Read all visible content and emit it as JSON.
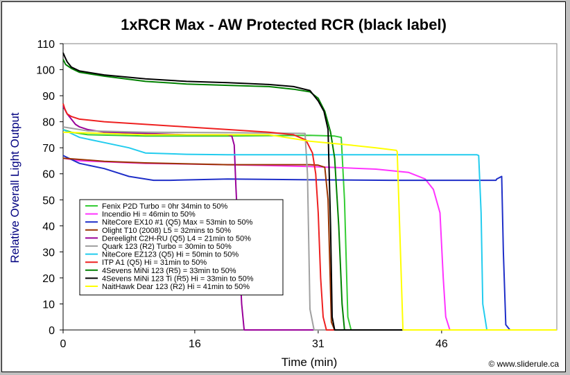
{
  "chart_data": {
    "type": "line",
    "title": "1xRCR Max - AW Protected RCR (black label)",
    "xlabel": "Time (min)",
    "ylabel": "Relative Overall Light Output",
    "xlim": [
      0,
      60
    ],
    "ylim": [
      0,
      110
    ],
    "x_ticks": [
      0,
      16,
      31,
      46
    ],
    "y_ticks": [
      0,
      10,
      20,
      30,
      40,
      50,
      60,
      70,
      80,
      90,
      100,
      110
    ],
    "grid": false,
    "legend_position": "lower-left",
    "credit": "© www.sliderule.ca",
    "series": [
      {
        "name": "Fenix P2D Turbo = 0hr 34min to 50%",
        "color": "#33cc33",
        "x": [
          0,
          1,
          3,
          10,
          20,
          30,
          33,
          33.8,
          34.2,
          34.6,
          35,
          36,
          60
        ],
        "y": [
          77,
          76,
          75,
          74.5,
          74.5,
          74.8,
          74.5,
          74,
          50,
          5,
          0,
          0,
          0
        ]
      },
      {
        "name": "Incendio Hi = 46min to 50%",
        "color": "#ff33ff",
        "x": [
          0,
          2,
          10,
          20,
          30,
          38,
          42,
          44,
          45,
          45.8,
          46.2,
          46.5,
          47,
          48,
          60
        ],
        "y": [
          66,
          65,
          64,
          63.5,
          62.8,
          61.8,
          60.5,
          58,
          54,
          45,
          20,
          5,
          0,
          0,
          0
        ]
      },
      {
        "name": "NiteCore EX10 #1 (Q5) Max = 53min to 50%",
        "color": "#1e2ec8",
        "x": [
          0,
          2,
          5,
          8,
          11,
          13,
          20,
          30,
          40,
          52.6,
          52.7,
          53.3,
          53.5,
          53.8,
          54.3,
          56,
          60
        ],
        "y": [
          67,
          64,
          62,
          59,
          57.5,
          57.5,
          58,
          57.7,
          57.5,
          57.5,
          58,
          59,
          30,
          2,
          0,
          0,
          0
        ]
      },
      {
        "name": "Olight T10 (2008) L5 = 32mins to 50%",
        "color": "#993300",
        "x": [
          0,
          5,
          10,
          20,
          25,
          30,
          31,
          31.8,
          32.2,
          32.6,
          33,
          34,
          60
        ],
        "y": [
          66,
          64.8,
          64.2,
          63.5,
          63.5,
          63.5,
          63.3,
          62.5,
          50,
          3,
          0,
          0,
          0
        ]
      },
      {
        "name": "Dereelight C2H-RU (Q5) L4 = 21min to 50%",
        "color": "#990099",
        "x": [
          0,
          0.5,
          1,
          1.5,
          2,
          3,
          5,
          10,
          15,
          20,
          20.5,
          20.8,
          21,
          21.3,
          21.7,
          22,
          22.5,
          60
        ],
        "y": [
          86,
          83,
          81,
          79,
          78,
          77,
          76,
          75.5,
          75,
          75,
          74.5,
          71,
          55,
          35,
          10,
          0,
          0,
          0
        ]
      },
      {
        "name": "Quark 123 (R2) Turbo = 30min to 50%",
        "color": "#a0a0a0",
        "x": [
          0,
          3,
          10,
          20,
          29.3,
          29.4,
          29.7,
          30,
          30.5,
          31,
          60
        ],
        "y": [
          78,
          76.5,
          76,
          75.8,
          75.5,
          75.5,
          60,
          8,
          0,
          0,
          0
        ]
      },
      {
        "name": "NiteCore EZ123 (Q5) Hi = 50min to 50%",
        "color": "#22ccee",
        "x": [
          0,
          2,
          5,
          8,
          10,
          15,
          20,
          30,
          40,
          47,
          50.3,
          50.5,
          50.8,
          51,
          51.5,
          52,
          60
        ],
        "y": [
          77,
          74,
          72,
          70,
          68,
          67.5,
          67.3,
          67.3,
          67.3,
          67.3,
          67.3,
          67,
          45,
          10,
          0,
          0,
          0
        ]
      },
      {
        "name": "ITP A1 (Q5) Hi = 31min to 50%",
        "color": "#ee2020",
        "x": [
          0,
          0.2,
          0.5,
          1,
          2,
          5,
          10,
          15,
          20,
          25,
          28,
          29.5,
          30.3,
          30.7,
          31,
          31.3,
          31.6,
          32,
          60
        ],
        "y": [
          87,
          85,
          83,
          82,
          81,
          80,
          79,
          78,
          77,
          76,
          75,
          73,
          68,
          60,
          45,
          20,
          5,
          0,
          0
        ]
      },
      {
        "name": "4Sevens MiNi 123 (R5) = 33min to 50%",
        "color": "#008000",
        "x": [
          0,
          0.3,
          1,
          2,
          5,
          10,
          15,
          20,
          25,
          28,
          30,
          31,
          31.8,
          32.5,
          33,
          33.5,
          33.9,
          34.2,
          35,
          60
        ],
        "y": [
          104,
          102,
          100.5,
          99,
          97.5,
          95.5,
          94.5,
          94,
          93.5,
          92.5,
          91.5,
          89,
          84,
          76,
          66,
          40,
          10,
          0,
          0,
          0
        ]
      },
      {
        "name": "4Sevens MiNi 123 Ti (R5) Hi = 33min to 50%",
        "color": "#000000",
        "x": [
          0,
          0.2,
          0.5,
          1,
          2,
          5,
          10,
          15,
          20,
          25,
          28,
          30,
          31,
          31.7,
          32.2,
          32.5,
          32.7,
          33,
          34,
          60
        ],
        "y": [
          106.5,
          105,
          103,
          101,
          99.5,
          98,
          96.5,
          95.5,
          95,
          94.3,
          93.5,
          92,
          88,
          84,
          77,
          40,
          5,
          0,
          0,
          0
        ]
      },
      {
        "name": "NaitHawk Dear 123 (R2) Hi = 41min to 50%",
        "color": "#ffff00",
        "x": [
          0,
          5,
          10,
          20,
          25,
          30,
          35,
          38,
          40.5,
          40.6,
          40.9,
          41.3,
          42,
          60
        ],
        "y": [
          76,
          75.5,
          75,
          75,
          75,
          72.5,
          71,
          70,
          69,
          68.5,
          40,
          0,
          0,
          0
        ]
      }
    ]
  }
}
